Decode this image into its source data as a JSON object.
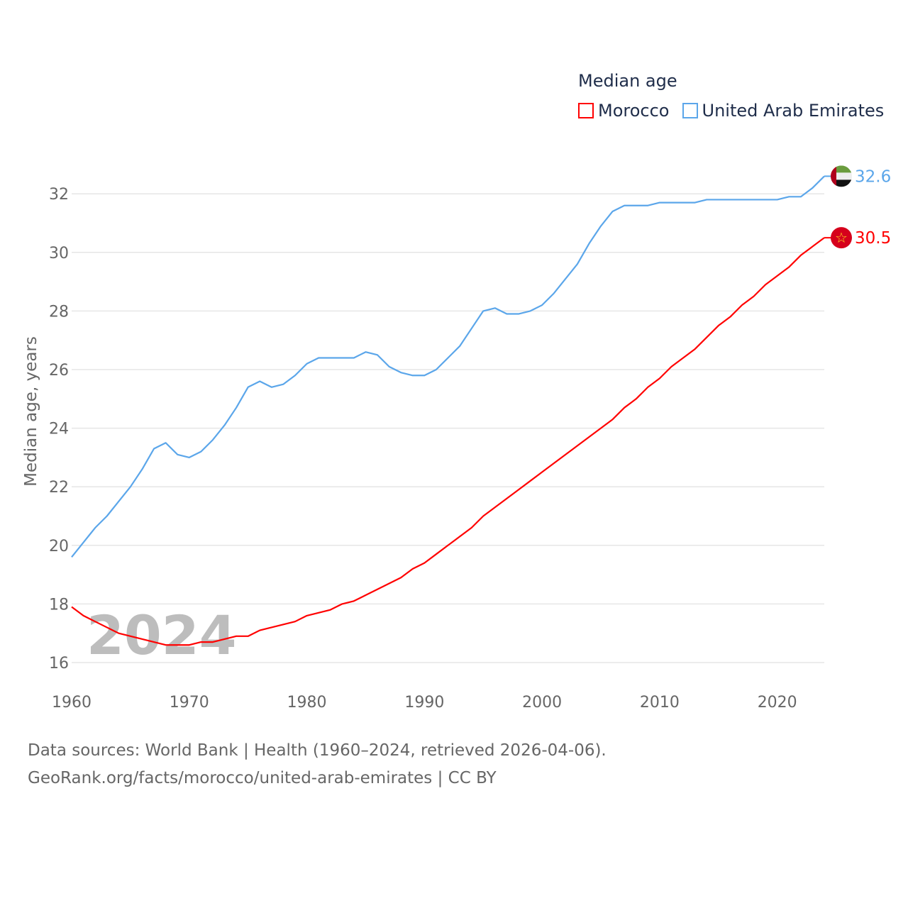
{
  "chart_data": {
    "type": "line",
    "title": "Median age",
    "ylabel": "Median age, years",
    "xlabel": "",
    "xlim": [
      1960,
      2024
    ],
    "ylim": [
      15.5,
      33
    ],
    "x_ticks": [
      1960,
      1970,
      1980,
      1990,
      2000,
      2010,
      2020
    ],
    "y_ticks": [
      16,
      18,
      20,
      22,
      24,
      26,
      28,
      30,
      32
    ],
    "grid": true,
    "legend_placement": "top-right",
    "year_watermark": "2024",
    "x": [
      1960,
      1961,
      1962,
      1963,
      1964,
      1965,
      1966,
      1967,
      1968,
      1969,
      1970,
      1971,
      1972,
      1973,
      1974,
      1975,
      1976,
      1977,
      1978,
      1979,
      1980,
      1981,
      1982,
      1983,
      1984,
      1985,
      1986,
      1987,
      1988,
      1989,
      1990,
      1991,
      1992,
      1993,
      1994,
      1995,
      1996,
      1997,
      1998,
      1999,
      2000,
      2001,
      2002,
      2003,
      2004,
      2005,
      2006,
      2007,
      2008,
      2009,
      2010,
      2011,
      2012,
      2013,
      2014,
      2015,
      2016,
      2017,
      2018,
      2019,
      2020,
      2021,
      2022,
      2023,
      2024
    ],
    "series": [
      {
        "name": "Morocco",
        "color": "#ff0000",
        "end_label": "30.5",
        "values": [
          17.9,
          17.6,
          17.4,
          17.2,
          17.0,
          16.9,
          16.8,
          16.7,
          16.6,
          16.6,
          16.6,
          16.7,
          16.7,
          16.8,
          16.9,
          16.9,
          17.1,
          17.2,
          17.3,
          17.4,
          17.6,
          17.7,
          17.8,
          18.0,
          18.1,
          18.3,
          18.5,
          18.7,
          18.9,
          19.2,
          19.4,
          19.7,
          20.0,
          20.3,
          20.6,
          21.0,
          21.3,
          21.6,
          21.9,
          22.2,
          22.5,
          22.8,
          23.1,
          23.4,
          23.7,
          24.0,
          24.3,
          24.7,
          25.0,
          25.4,
          25.7,
          26.1,
          26.4,
          26.7,
          27.1,
          27.5,
          27.8,
          28.2,
          28.5,
          28.9,
          29.2,
          29.5,
          29.9,
          30.2,
          30.5
        ]
      },
      {
        "name": "United Arab Emirates",
        "color": "#5ba6ea",
        "end_label": "32.6",
        "values": [
          19.6,
          20.1,
          20.6,
          21.0,
          21.5,
          22.0,
          22.6,
          23.3,
          23.5,
          23.1,
          23.0,
          23.2,
          23.6,
          24.1,
          24.7,
          25.4,
          25.6,
          25.4,
          25.5,
          25.8,
          26.2,
          26.4,
          26.4,
          26.4,
          26.4,
          26.6,
          26.5,
          26.1,
          25.9,
          25.8,
          25.8,
          26.0,
          26.4,
          26.8,
          27.4,
          28.0,
          28.1,
          27.9,
          27.9,
          28.0,
          28.2,
          28.6,
          29.1,
          29.6,
          30.3,
          30.9,
          31.4,
          31.6,
          31.6,
          31.6,
          31.7,
          31.7,
          31.7,
          31.7,
          31.8,
          31.8,
          31.8,
          31.8,
          31.8,
          31.8,
          31.8,
          31.9,
          31.9,
          32.2,
          32.6
        ]
      }
    ]
  },
  "legend": {
    "title": "Median age",
    "items": [
      "Morocco",
      "United Arab Emirates"
    ]
  },
  "footer": {
    "line1": "Data sources: World Bank | Health (1960–2024, retrieved 2026-04-06).",
    "line2": "GeoRank.org/facts/morocco/united-arab-emirates | CC BY"
  }
}
